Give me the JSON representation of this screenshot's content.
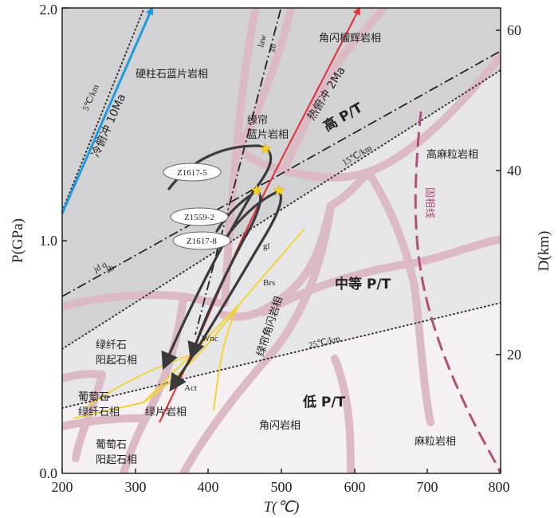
{
  "axes": {
    "x_title": "T(℃)",
    "y_title": "P(GPa)",
    "y2_title": "D(km)",
    "x_ticks": [
      "200",
      "300",
      "400",
      "500",
      "600",
      "700",
      "800"
    ],
    "y_ticks": [
      "0.0",
      "1.0",
      "2.0"
    ],
    "y2_ticks": [
      "20",
      "40",
      "60"
    ]
  },
  "regimes": {
    "high": "高 P/T",
    "medium": "中等 P/T",
    "low": "低 P/T"
  },
  "facies": {
    "lawsonite_blueschist": "硬柱石蓝片岩相",
    "amphibole_eclogite": "角闪榴辉岩相",
    "epidote_blueschist_1": "绿帘",
    "epidote_blueschist_2": "蓝片岩相",
    "high_granulite": "高麻粒岩相",
    "greenstone_actinolite_1": "绿纤石",
    "greenstone_actinolite_2": "阳起石相",
    "epidote_amphibolite": "绿帘角闪岩相",
    "prehnite_pumpellyite_1": "葡萄石",
    "prehnite_pumpellyite_2": "绿纤石相",
    "prehnite_actinolite_1": "葡萄石",
    "prehnite_actinolite_2": "阳起石相",
    "greenschist": "绿片岩相",
    "amphibolite": "角闪岩相",
    "granulite": "麻粒岩相"
  },
  "gradients": {
    "cold_subduction": "冷俯冲 10Ma",
    "hot_subduction": "热俯冲 2Ma",
    "g5": "5℃/km",
    "g15": "15℃/km",
    "g25": "25℃/km",
    "solidus": "固相线"
  },
  "reactions": {
    "law": "law",
    "zo": "zo",
    "jdq": "jd q",
    "ab": "ab",
    "gl": "gl",
    "brs": "Brs",
    "wnc": "Wnc",
    "act": "Act"
  },
  "samples": [
    {
      "label": "Z1617-5"
    },
    {
      "label": "Z1559-2"
    },
    {
      "label": "Z1617-8"
    }
  ],
  "colors": {
    "hp_region": "#d2d2d4",
    "mp_region": "#e6e5e8",
    "lp_region": "#f5f0f2",
    "facies_boundary": "#dbbac5",
    "cold_path": "#1d9be0",
    "hot_path": "#e0383e",
    "solidus": "#b0507a",
    "brs_line": "#f2d43a",
    "ptt_path": "#3a3a3a",
    "peak_star": "#f5d020"
  }
}
